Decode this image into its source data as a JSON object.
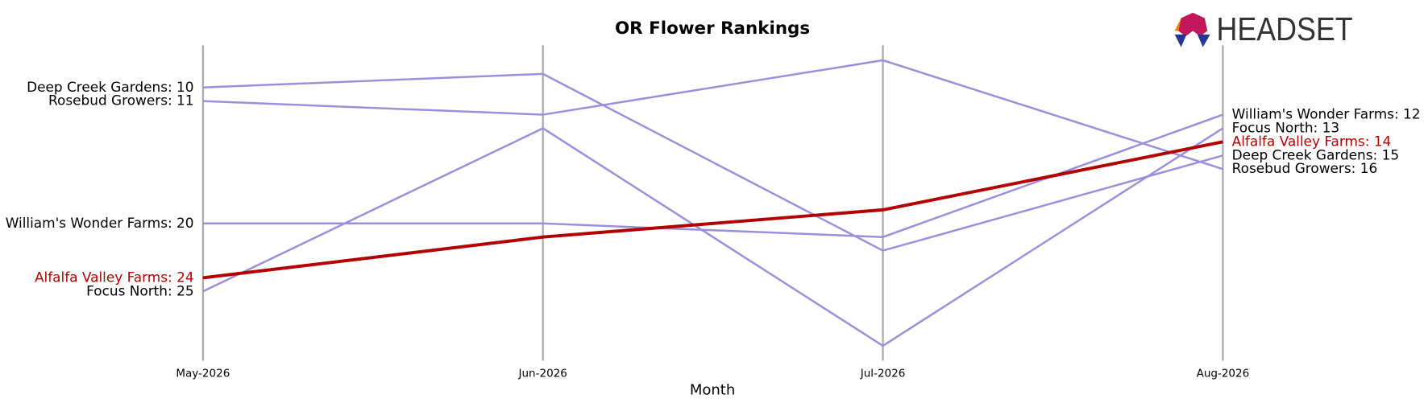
{
  "chart_data": {
    "type": "bump",
    "title": "OR Flower Rankings",
    "xlabel": "Month",
    "logo": "HEADSET",
    "categories": [
      "May-2026",
      "Jun-2026",
      "Jul-2026",
      "Aug-2026"
    ],
    "ylim": [
      30.1,
      6.9
    ],
    "inverted": true,
    "series": [
      {
        "name": "Deep Creek Gardens",
        "color": "#9b8fdc",
        "highlight": false,
        "values": [
          10,
          9,
          22,
          15
        ],
        "value_labels": [
          "Deep Creek Gardens: 10",
          null,
          null,
          "Deep Creek Gardens: 15"
        ]
      },
      {
        "name": "Rosebud Growers",
        "color": "#9b8fdc",
        "highlight": false,
        "values": [
          11,
          12,
          8,
          16
        ],
        "value_labels": [
          "Rosebud Growers: 11",
          null,
          null,
          "Rosebud Growers: 16"
        ]
      },
      {
        "name": "William's Wonder Farms",
        "color": "#9b8fdc",
        "highlight": false,
        "values": [
          20,
          20,
          21,
          12
        ],
        "value_labels": [
          "William's Wonder Farms: 20",
          null,
          null,
          "William's Wonder Farms: 12"
        ]
      },
      {
        "name": "Focus North",
        "color": "#9b8fdc",
        "highlight": false,
        "values": [
          25,
          13,
          29,
          13
        ],
        "value_labels": [
          "Focus North: 25",
          null,
          null,
          "Focus North: 13"
        ]
      },
      {
        "name": "Alfalfa Valley Farms",
        "color": "#b30000",
        "highlight": true,
        "values": [
          24,
          21,
          19,
          14
        ],
        "value_labels": [
          "Alfalfa Valley Farms: 24",
          null,
          null,
          "Alfalfa Valley Farms: 14"
        ]
      }
    ]
  }
}
